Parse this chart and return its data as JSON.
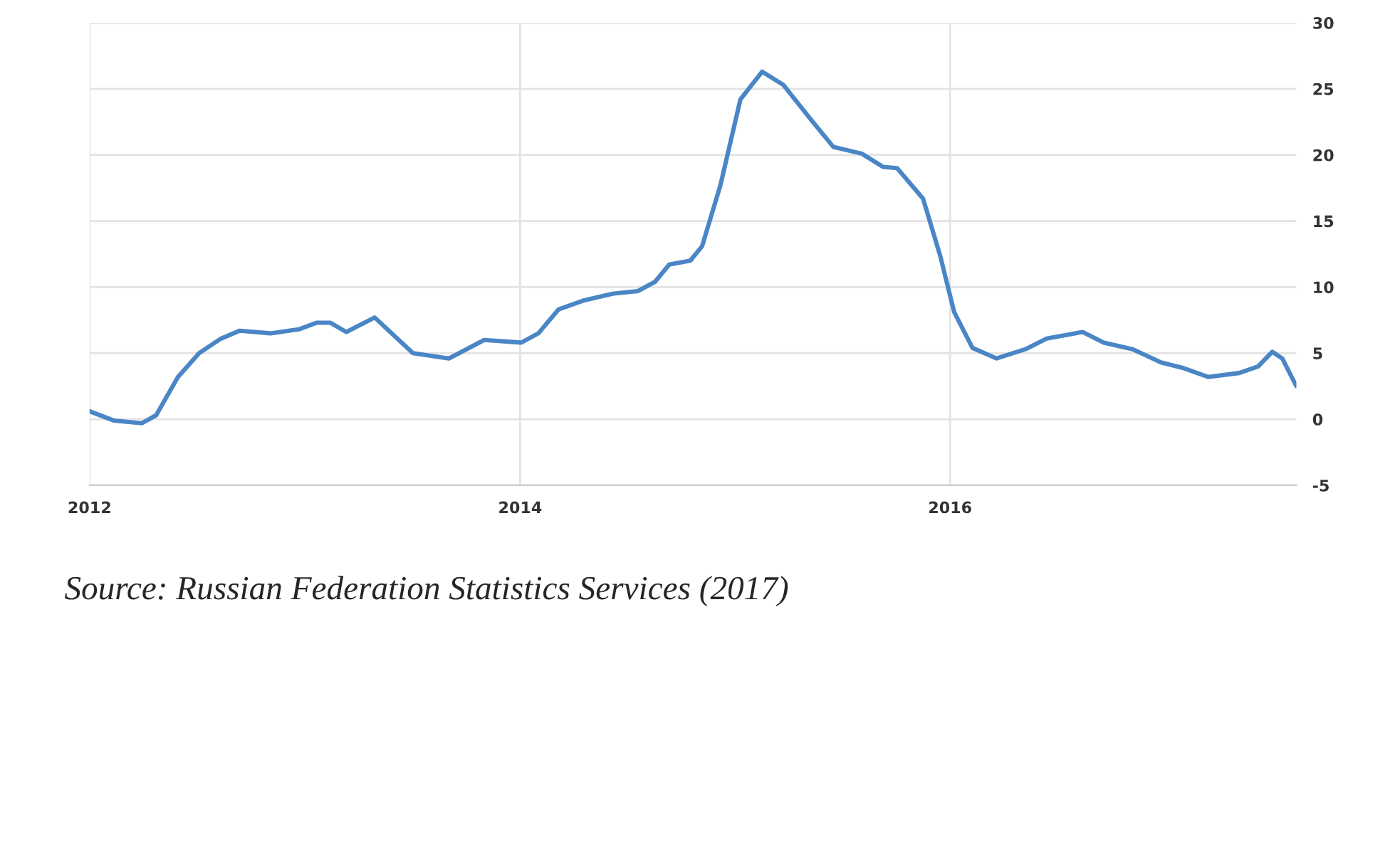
{
  "chart_data": {
    "type": "line",
    "x": [
      "2012-01-01",
      "2012-02-11",
      "2012-03-30",
      "2012-04-23",
      "2012-05-30",
      "2012-07-05",
      "2012-08-11",
      "2012-09-12",
      "2012-11-03",
      "2012-12-21",
      "2013-01-20",
      "2013-02-13",
      "2013-03-12",
      "2013-04-29",
      "2013-05-28",
      "2013-07-03",
      "2013-09-02",
      "2013-11-01",
      "2014-01-03",
      "2014-02-01",
      "2014-03-07",
      "2014-04-20",
      "2014-06-07",
      "2014-07-20",
      "2014-08-18",
      "2014-09-11",
      "2014-10-17",
      "2014-11-06",
      "2014-12-07",
      "2015-01-10",
      "2015-02-16",
      "2015-03-24",
      "2015-05-11",
      "2015-06-17",
      "2015-08-04",
      "2015-09-09",
      "2015-10-03",
      "2015-11-16",
      "2015-12-15",
      "2016-01-08",
      "2016-02-08",
      "2016-03-20",
      "2016-05-08",
      "2016-06-13",
      "2016-08-13",
      "2016-09-18",
      "2016-11-06",
      "2016-12-24",
      "2017-01-29",
      "2017-03-14",
      "2017-05-06",
      "2017-06-07",
      "2017-07-01",
      "2017-07-18",
      "2017-08-11"
    ],
    "series": [
      {
        "color": "#4a86c5",
        "values": [
          0.6,
          -0.1,
          -0.3,
          0.3,
          3.2,
          5.0,
          6.1,
          6.7,
          6.5,
          6.8,
          7.3,
          7.3,
          6.6,
          7.7,
          6.5,
          5.0,
          4.6,
          6.0,
          5.8,
          6.5,
          8.3,
          9.0,
          9.5,
          9.7,
          10.4,
          11.7,
          12.0,
          13.1,
          17.7,
          24.2,
          26.3,
          25.3,
          22.6,
          20.6,
          20.1,
          19.1,
          19.0,
          16.7,
          12.4,
          8.1,
          5.4,
          4.6,
          5.3,
          6.1,
          6.6,
          5.8,
          5.3,
          4.3,
          3.9,
          3.2,
          3.5,
          4.0,
          5.1,
          4.6,
          2.5
        ]
      }
    ],
    "xlim": [
      "2012-01-01",
      "2017-08-11"
    ],
    "xticks": [
      {
        "value": "2012-01-01",
        "label": "2012"
      },
      {
        "value": "2014-01-01",
        "label": "2014"
      },
      {
        "value": "2016-01-01",
        "label": "2016"
      }
    ],
    "ylim": [
      -5,
      30
    ],
    "yticks": [
      -5,
      0,
      5,
      10,
      15,
      20,
      25,
      30
    ],
    "grid": true,
    "marker": "none",
    "line_style": "solid",
    "annotations": [
      "Source: Russian Federation Statistics Services (2017)"
    ]
  }
}
